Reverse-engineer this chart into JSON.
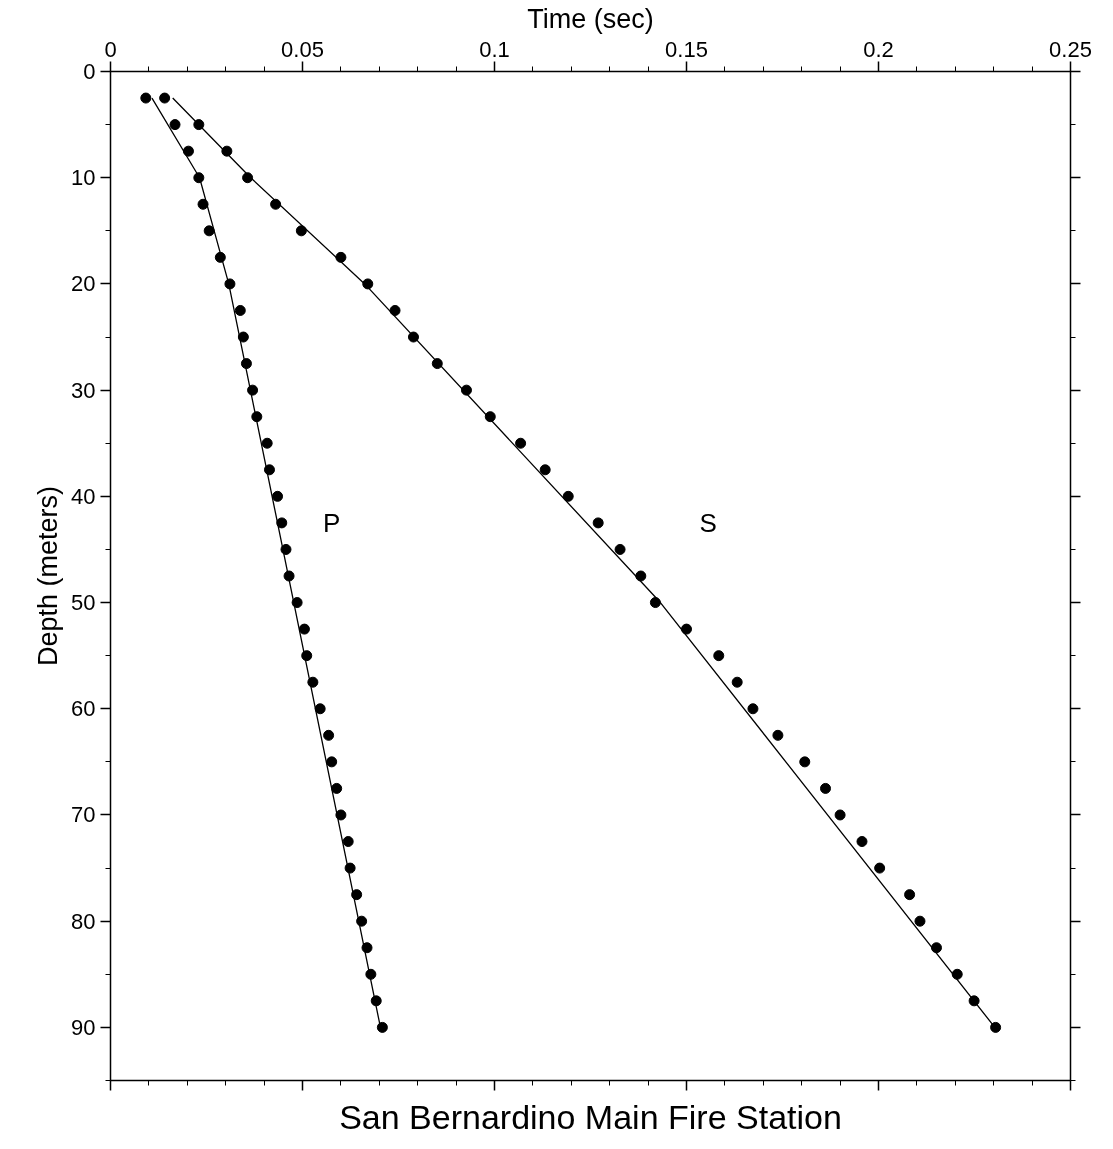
{
  "chart_data": {
    "type": "scatter",
    "title": "San Bernardino Main Fire Station",
    "xlabel": "Time (sec)",
    "ylabel": "Depth (meters)",
    "xlim": [
      0,
      0.25
    ],
    "xticks": [
      0,
      0.05,
      0.1,
      0.15,
      0.2,
      0.25
    ],
    "ylim": [
      95,
      0
    ],
    "yticks": [
      0,
      10,
      20,
      30,
      40,
      50,
      60,
      70,
      80,
      90
    ],
    "grid": false,
    "series": [
      {
        "name": "P",
        "marker": "circle",
        "color": "#000000",
        "x": [
          0.0092,
          0.0168,
          0.0203,
          0.023,
          0.0241,
          0.0257,
          0.0286,
          0.0311,
          0.0338,
          0.0346,
          0.0354,
          0.037,
          0.0381,
          0.0408,
          0.0414,
          0.0435,
          0.0446,
          0.0457,
          0.0465,
          0.0486,
          0.0505,
          0.0511,
          0.0527,
          0.0546,
          0.0568,
          0.0576,
          0.0589,
          0.06,
          0.0619,
          0.0624,
          0.0641,
          0.0654,
          0.0668,
          0.0678,
          0.0692,
          0.0708
        ],
        "values": [
          2.5,
          5,
          7.5,
          10,
          12.5,
          15,
          17.5,
          20,
          22.5,
          25,
          27.5,
          30,
          32.5,
          35,
          37.5,
          40,
          42.5,
          45,
          47.5,
          50,
          52.5,
          55,
          57.5,
          60,
          62.5,
          65,
          67.5,
          70,
          72.5,
          75,
          77.5,
          80,
          82.5,
          85,
          87.5,
          90
        ]
      },
      {
        "name": "S",
        "marker": "circle",
        "color": "#000000",
        "x": [
          0.0141,
          0.023,
          0.0303,
          0.0357,
          0.043,
          0.0497,
          0.06,
          0.067,
          0.0741,
          0.0789,
          0.0851,
          0.0927,
          0.0989,
          0.1068,
          0.1132,
          0.1192,
          0.127,
          0.1327,
          0.1381,
          0.1419,
          0.15,
          0.1584,
          0.1632,
          0.1673,
          0.1738,
          0.1808,
          0.1862,
          0.19,
          0.1957,
          0.2003,
          0.2081,
          0.2108,
          0.2151,
          0.2205,
          0.2249,
          0.2305
        ],
        "values": [
          2.5,
          5,
          7.5,
          10,
          12.5,
          15,
          17.5,
          20,
          22.5,
          25,
          27.5,
          30,
          32.5,
          35,
          37.5,
          40,
          42.5,
          45,
          47.5,
          50,
          52.5,
          55,
          57.5,
          60,
          62.5,
          65,
          67.5,
          70,
          72.5,
          75,
          77.5,
          80,
          82.5,
          85,
          87.5,
          90
        ]
      },
      {
        "type": "line",
        "color": "#000000",
        "x": [
          0.0108,
          0.0232,
          0.027,
          0.0308,
          0.0703
        ],
        "values": [
          2.5,
          10,
          15,
          20,
          90
        ]
      },
      {
        "type": "line",
        "color": "#000000",
        "x": [
          0.0162,
          0.0365,
          0.0662,
          0.1432,
          0.2303
        ],
        "values": [
          2.5,
          10,
          20,
          50,
          90
        ]
      }
    ]
  }
}
